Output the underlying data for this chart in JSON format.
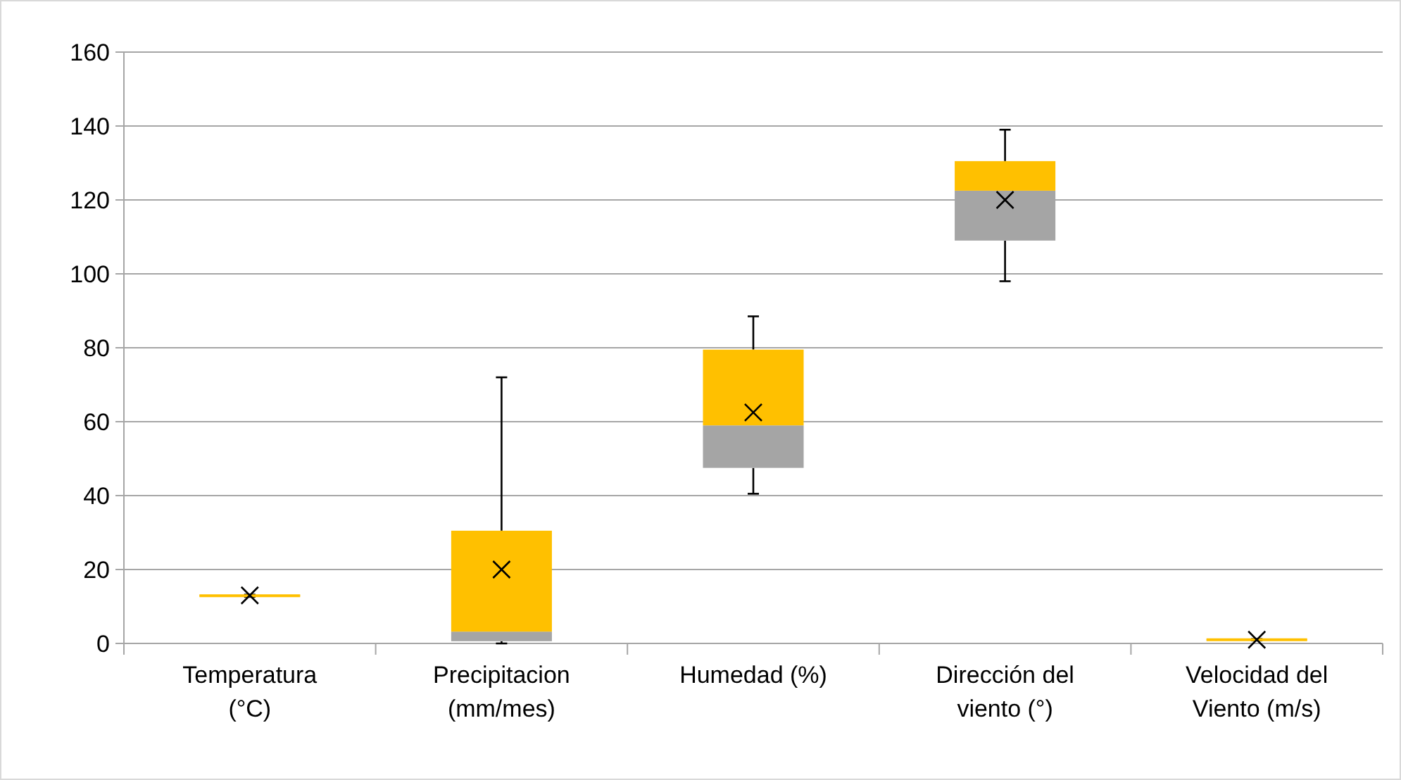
{
  "chart_data": {
    "type": "box",
    "categories": [
      "Temperatura (°C)",
      "Precipitacion (mm/mes)",
      "Humedad (%)",
      "Dirección del viento (°)",
      "Velocidad del Viento (m/s)"
    ],
    "series": [
      {
        "color": "#ffc000",
        "colors": [
          "#a5a5a5",
          "#a5a5a5",
          "#a5a5a5",
          "#a5a5a5",
          "#a5a5a5"
        ],
        "marker": "cross",
        "boxes": [
          {
            "low": 12.6,
            "q1": 12.8,
            "median": 12.9,
            "q3": 13,
            "high": 13.2,
            "mean": 13
          },
          {
            "low": 0,
            "q1": 0.6,
            "median": 3.2,
            "q3": 30.5,
            "high": 72,
            "mean": 20
          },
          {
            "low": 40.5,
            "q1": 47.5,
            "median": 59,
            "q3": 79.5,
            "high": 88.5,
            "mean": 62.5
          },
          {
            "low": 98,
            "q1": 109,
            "median": 122.5,
            "q3": 130.5,
            "high": 139,
            "mean": 120
          },
          {
            "low": 0.8,
            "q1": 0.9,
            "median": 1,
            "q3": 1.1,
            "high": 1.2,
            "mean": 1
          }
        ]
      }
    ],
    "ylim": [
      0,
      160
    ],
    "yticks": [
      0,
      20,
      40,
      60,
      80,
      100,
      120,
      140,
      160
    ],
    "grid": "y"
  }
}
